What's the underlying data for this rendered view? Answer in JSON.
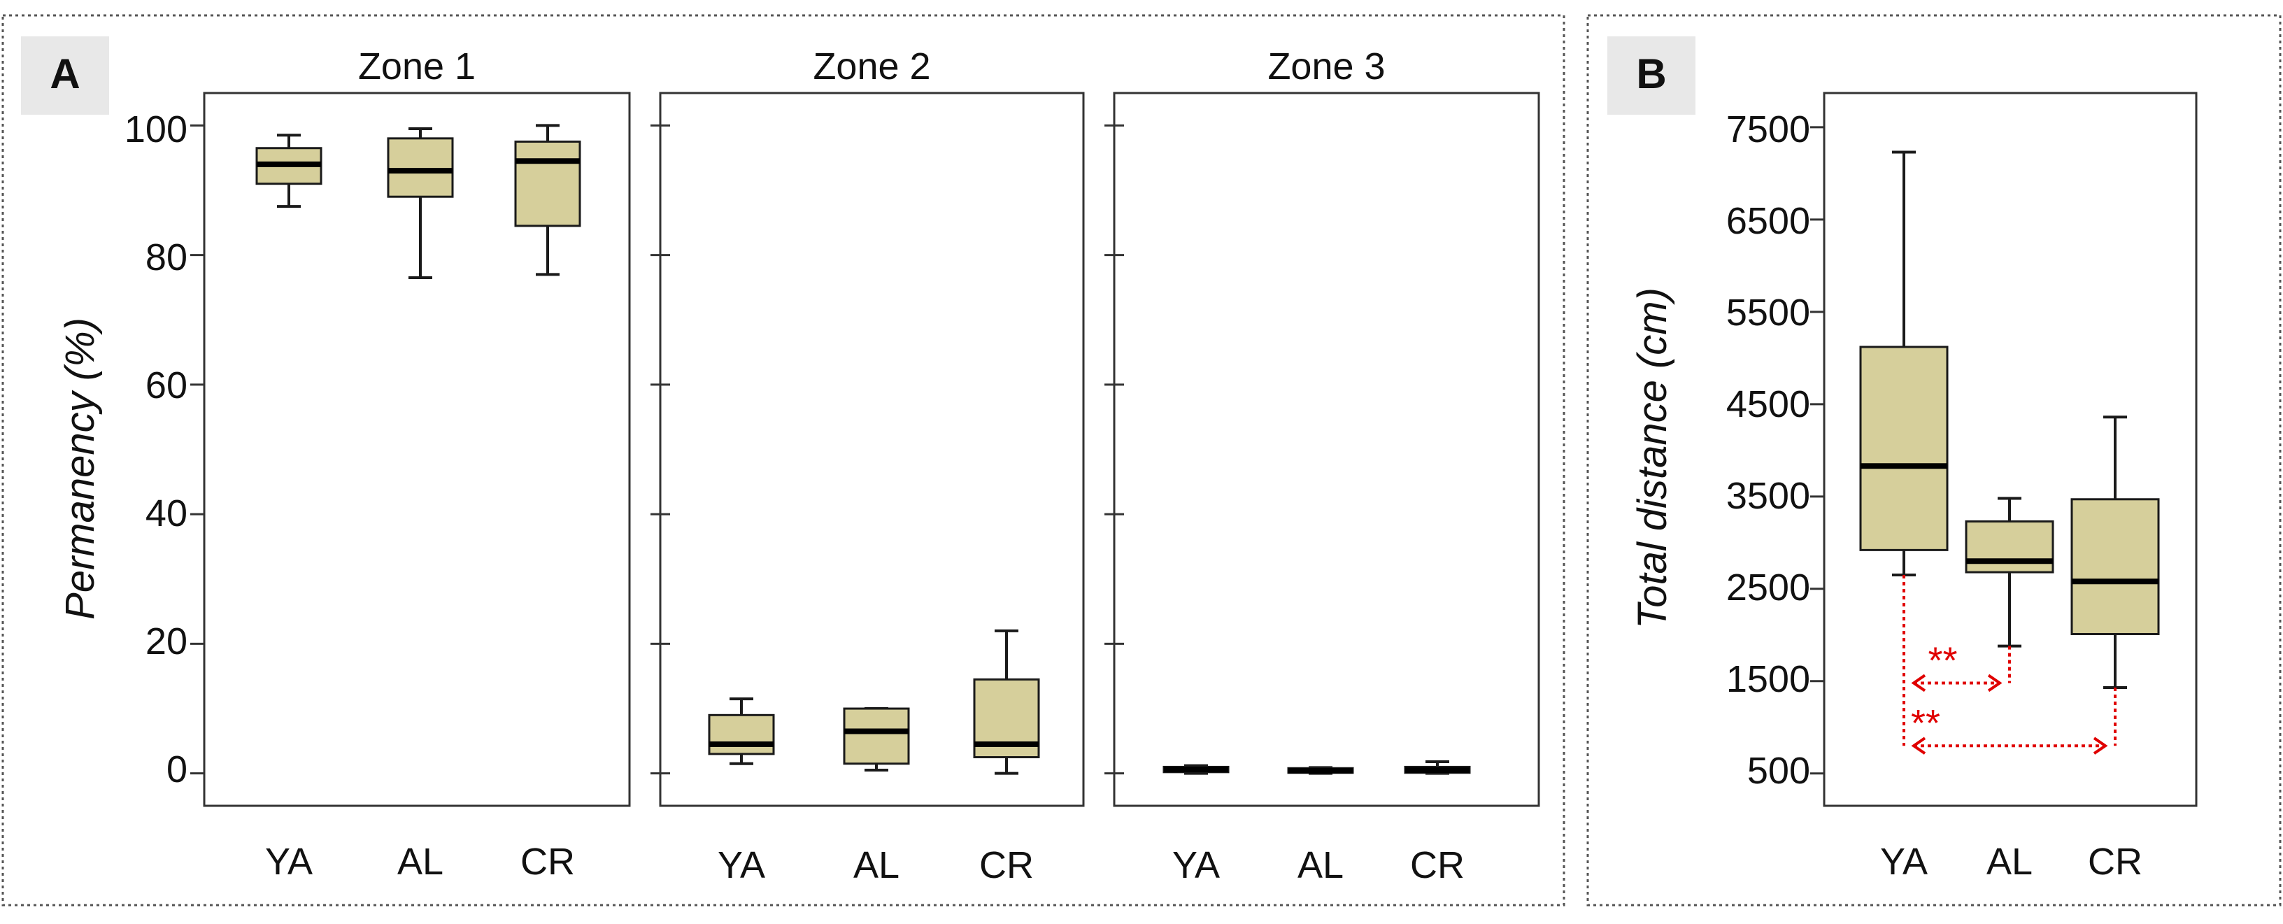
{
  "colors": {
    "box_fill": "#d6cf9b",
    "box_stroke": "#1a1a1a",
    "axis": "#333333",
    "sig_marker": "#e00000",
    "panel_border": "#555555",
    "label_bg": "#e8e8e8"
  },
  "panel_a": {
    "label": "A",
    "ylabel": "Permanency (%)",
    "yticks": [
      "0",
      "20",
      "40",
      "60",
      "80",
      "100"
    ]
  },
  "panel_b": {
    "label": "B",
    "ylabel": "Total distance (cm)",
    "yticks": [
      "500",
      "1500",
      "2500",
      "3500",
      "4500",
      "5500",
      "6500",
      "7500"
    ]
  },
  "chart_data": [
    {
      "type": "boxplot",
      "panel": "A",
      "title": "Zone 1",
      "ylabel": "Permanency (%)",
      "ylim": [
        -5,
        105
      ],
      "categories": [
        "YA",
        "AL",
        "CR"
      ],
      "boxes": [
        {
          "group": "YA",
          "min": 87.5,
          "q1": 91,
          "median": 94,
          "q3": 96.5,
          "max": 98.5
        },
        {
          "group": "AL",
          "min": 76.5,
          "q1": 89,
          "median": 93,
          "q3": 98,
          "max": 99.5
        },
        {
          "group": "CR",
          "min": 77,
          "q1": 84.5,
          "median": 94.5,
          "q3": 97.5,
          "max": 100
        }
      ]
    },
    {
      "type": "boxplot",
      "panel": "A",
      "title": "Zone 2",
      "ylabel": "Permanency (%)",
      "ylim": [
        -5,
        105
      ],
      "categories": [
        "YA",
        "AL",
        "CR"
      ],
      "boxes": [
        {
          "group": "YA",
          "min": 1.5,
          "q1": 3,
          "median": 4.5,
          "q3": 9,
          "max": 11.5
        },
        {
          "group": "AL",
          "min": 0.5,
          "q1": 1.5,
          "median": 6.5,
          "q3": 10,
          "max": 10
        },
        {
          "group": "CR",
          "min": 0,
          "q1": 2.5,
          "median": 4.5,
          "q3": 14.5,
          "max": 22
        }
      ]
    },
    {
      "type": "boxplot",
      "panel": "A",
      "title": "Zone 3",
      "ylabel": "Permanency (%)",
      "ylim": [
        -5,
        105
      ],
      "categories": [
        "YA",
        "AL",
        "CR"
      ],
      "boxes": [
        {
          "group": "YA",
          "min": 0,
          "q1": 0.2,
          "median": 0.6,
          "q3": 1,
          "max": 1.2
        },
        {
          "group": "AL",
          "min": 0,
          "q1": 0.1,
          "median": 0.4,
          "q3": 0.8,
          "max": 0.9
        },
        {
          "group": "CR",
          "min": 0,
          "q1": 0.1,
          "median": 0.5,
          "q3": 1,
          "max": 1.8
        }
      ]
    },
    {
      "type": "boxplot",
      "panel": "B",
      "title": "",
      "ylabel": "Total distance (cm)",
      "ylim": [
        150,
        7870
      ],
      "categories": [
        "YA",
        "AL",
        "CR"
      ],
      "boxes": [
        {
          "group": "YA",
          "min": 2650,
          "q1": 2920,
          "median": 3830,
          "q3": 5120,
          "max": 7230
        },
        {
          "group": "AL",
          "min": 1880,
          "q1": 2680,
          "median": 2800,
          "q3": 3230,
          "max": 3480
        },
        {
          "group": "CR",
          "min": 1430,
          "q1": 2010,
          "median": 2580,
          "q3": 3470,
          "max": 4360
        }
      ],
      "significance": [
        {
          "from": "YA",
          "to": "AL",
          "label": "**",
          "y": 1480
        },
        {
          "from": "YA",
          "to": "CR",
          "label": "**",
          "y": 800
        }
      ]
    }
  ]
}
